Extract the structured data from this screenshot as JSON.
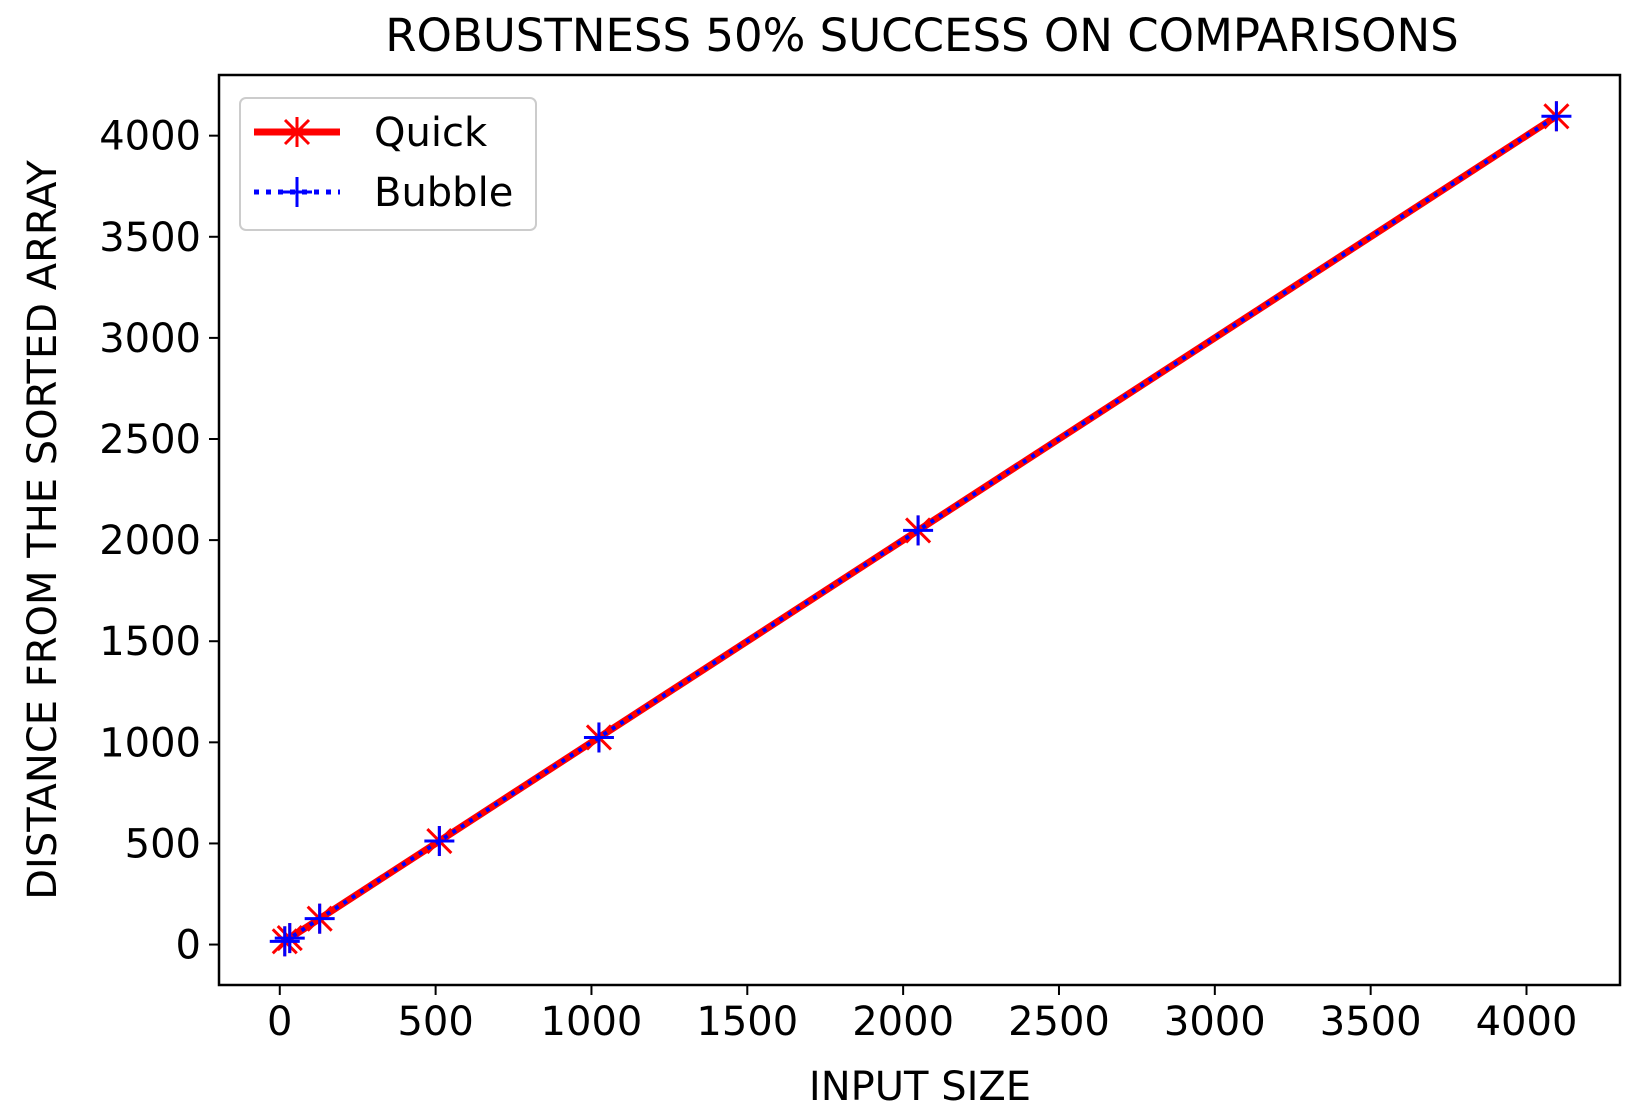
{
  "chart_data": {
    "type": "line",
    "title": "ROBUSTNESS 50% SUCCESS ON COMPARISONS",
    "xlabel": "INPUT SIZE",
    "ylabel": "DISTANCE FROM THE SORTED ARRAY",
    "xlim": [
      -195,
      4300
    ],
    "ylim": [
      -200,
      4300
    ],
    "xticks": [
      0,
      500,
      1000,
      1500,
      2000,
      2500,
      3000,
      3500,
      4000
    ],
    "yticks": [
      0,
      500,
      1000,
      1500,
      2000,
      2500,
      3000,
      3500,
      4000
    ],
    "grid": false,
    "legend_position": "upper left",
    "series": [
      {
        "name": "Quick",
        "color": "#ff0000",
        "line_style": "solid",
        "marker": "asterisk",
        "x": [
          16,
          32,
          128,
          512,
          1024,
          2048,
          4096
        ],
        "y": [
          16,
          32,
          128,
          512,
          1024,
          2048,
          4096
        ]
      },
      {
        "name": "Bubble",
        "color": "#0000ff",
        "line_style": "dotted",
        "marker": "plus",
        "x": [
          16,
          32,
          128,
          512,
          1024,
          2048,
          4096
        ],
        "y": [
          16,
          32,
          128,
          512,
          1024,
          2048,
          4096
        ]
      }
    ]
  }
}
